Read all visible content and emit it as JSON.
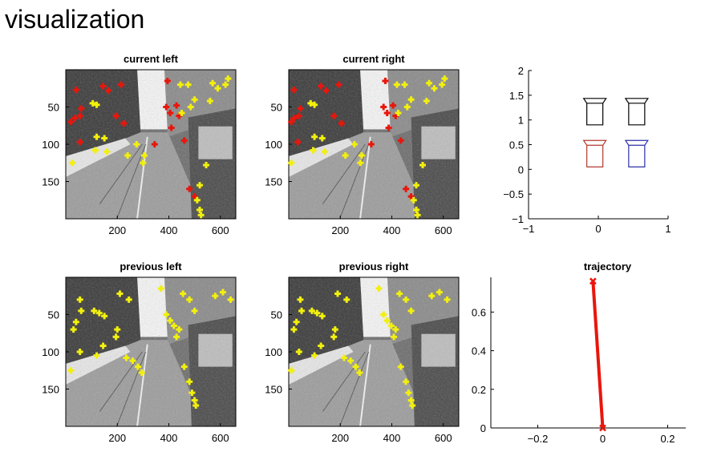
{
  "page": {
    "title": "visualization"
  },
  "colors": {
    "feature_current": "#e8160c",
    "feature_matched": "#f2f00c",
    "camera_left": "#b03a2e",
    "camera_right": "#2e2ea8",
    "camera_previous": "#000000",
    "trajectory": "#e8160c"
  },
  "chart_data": [
    {
      "id": "current-left",
      "type": "image",
      "title": "current left",
      "xticks": [
        "200",
        "400",
        "600"
      ],
      "yticks": [
        "50",
        "100",
        "150"
      ],
      "points": [
        {
          "x": 40,
          "y": 27,
          "c": "red"
        },
        {
          "x": 60,
          "y": 52,
          "c": "red"
        },
        {
          "x": 55,
          "y": 62,
          "c": "red"
        },
        {
          "x": 35,
          "y": 65,
          "c": "red"
        },
        {
          "x": 55,
          "y": 97,
          "c": "red"
        },
        {
          "x": 20,
          "y": 70,
          "c": "red"
        },
        {
          "x": 145,
          "y": 22,
          "c": "red"
        },
        {
          "x": 165,
          "y": 28,
          "c": "red"
        },
        {
          "x": 215,
          "y": 20,
          "c": "red"
        },
        {
          "x": 195,
          "y": 62,
          "c": "red"
        },
        {
          "x": 225,
          "y": 72,
          "c": "red"
        },
        {
          "x": 345,
          "y": 100,
          "c": "red"
        },
        {
          "x": 395,
          "y": 15,
          "c": "red"
        },
        {
          "x": 390,
          "y": 50,
          "c": "red"
        },
        {
          "x": 405,
          "y": 58,
          "c": "red"
        },
        {
          "x": 430,
          "y": 48,
          "c": "red"
        },
        {
          "x": 440,
          "y": 62,
          "c": "red"
        },
        {
          "x": 410,
          "y": 78,
          "c": "red"
        },
        {
          "x": 460,
          "y": 95,
          "c": "red"
        },
        {
          "x": 480,
          "y": 160,
          "c": "red"
        },
        {
          "x": 500,
          "y": 170,
          "c": "red"
        },
        {
          "x": 105,
          "y": 45,
          "c": "yellow"
        },
        {
          "x": 120,
          "y": 47,
          "c": "yellow"
        },
        {
          "x": 120,
          "y": 90,
          "c": "yellow"
        },
        {
          "x": 150,
          "y": 92,
          "c": "yellow"
        },
        {
          "x": 115,
          "y": 108,
          "c": "yellow"
        },
        {
          "x": 160,
          "y": 110,
          "c": "yellow"
        },
        {
          "x": 25,
          "y": 125,
          "c": "yellow"
        },
        {
          "x": 240,
          "y": 115,
          "c": "yellow"
        },
        {
          "x": 275,
          "y": 100,
          "c": "yellow"
        },
        {
          "x": 300,
          "y": 125,
          "c": "yellow"
        },
        {
          "x": 305,
          "y": 115,
          "c": "yellow"
        },
        {
          "x": 445,
          "y": 20,
          "c": "yellow"
        },
        {
          "x": 475,
          "y": 20,
          "c": "yellow"
        },
        {
          "x": 485,
          "y": 50,
          "c": "yellow"
        },
        {
          "x": 500,
          "y": 40,
          "c": "yellow"
        },
        {
          "x": 450,
          "y": 58,
          "c": "yellow"
        },
        {
          "x": 570,
          "y": 18,
          "c": "yellow"
        },
        {
          "x": 590,
          "y": 25,
          "c": "yellow"
        },
        {
          "x": 620,
          "y": 20,
          "c": "yellow"
        },
        {
          "x": 630,
          "y": 12,
          "c": "yellow"
        },
        {
          "x": 560,
          "y": 42,
          "c": "yellow"
        },
        {
          "x": 545,
          "y": 128,
          "c": "yellow"
        },
        {
          "x": 520,
          "y": 155,
          "c": "yellow"
        },
        {
          "x": 510,
          "y": 175,
          "c": "yellow"
        },
        {
          "x": 520,
          "y": 188,
          "c": "yellow"
        },
        {
          "x": 525,
          "y": 195,
          "c": "yellow"
        }
      ]
    },
    {
      "id": "current-right",
      "type": "image",
      "title": "current right",
      "xticks": [
        "200",
        "400",
        "600"
      ],
      "yticks": [
        "50",
        "100",
        "150"
      ],
      "points": [
        {
          "x": 20,
          "y": 27,
          "c": "red"
        },
        {
          "x": 45,
          "y": 52,
          "c": "red"
        },
        {
          "x": 40,
          "y": 62,
          "c": "red"
        },
        {
          "x": 20,
          "y": 65,
          "c": "red"
        },
        {
          "x": 35,
          "y": 97,
          "c": "red"
        },
        {
          "x": 10,
          "y": 70,
          "c": "red"
        },
        {
          "x": 125,
          "y": 22,
          "c": "red"
        },
        {
          "x": 145,
          "y": 28,
          "c": "red"
        },
        {
          "x": 195,
          "y": 20,
          "c": "red"
        },
        {
          "x": 175,
          "y": 62,
          "c": "red"
        },
        {
          "x": 205,
          "y": 72,
          "c": "red"
        },
        {
          "x": 320,
          "y": 100,
          "c": "red"
        },
        {
          "x": 375,
          "y": 15,
          "c": "red"
        },
        {
          "x": 368,
          "y": 50,
          "c": "red"
        },
        {
          "x": 382,
          "y": 58,
          "c": "red"
        },
        {
          "x": 405,
          "y": 48,
          "c": "red"
        },
        {
          "x": 415,
          "y": 62,
          "c": "red"
        },
        {
          "x": 388,
          "y": 78,
          "c": "red"
        },
        {
          "x": 435,
          "y": 95,
          "c": "red"
        },
        {
          "x": 455,
          "y": 160,
          "c": "red"
        },
        {
          "x": 475,
          "y": 170,
          "c": "red"
        },
        {
          "x": 85,
          "y": 45,
          "c": "yellow"
        },
        {
          "x": 100,
          "y": 47,
          "c": "yellow"
        },
        {
          "x": 100,
          "y": 90,
          "c": "yellow"
        },
        {
          "x": 130,
          "y": 92,
          "c": "yellow"
        },
        {
          "x": 95,
          "y": 108,
          "c": "yellow"
        },
        {
          "x": 140,
          "y": 110,
          "c": "yellow"
        },
        {
          "x": 10,
          "y": 125,
          "c": "yellow"
        },
        {
          "x": 220,
          "y": 115,
          "c": "yellow"
        },
        {
          "x": 255,
          "y": 100,
          "c": "yellow"
        },
        {
          "x": 278,
          "y": 125,
          "c": "yellow"
        },
        {
          "x": 283,
          "y": 115,
          "c": "yellow"
        },
        {
          "x": 420,
          "y": 20,
          "c": "yellow"
        },
        {
          "x": 450,
          "y": 20,
          "c": "yellow"
        },
        {
          "x": 460,
          "y": 50,
          "c": "yellow"
        },
        {
          "x": 475,
          "y": 40,
          "c": "yellow"
        },
        {
          "x": 425,
          "y": 58,
          "c": "yellow"
        },
        {
          "x": 545,
          "y": 18,
          "c": "yellow"
        },
        {
          "x": 565,
          "y": 25,
          "c": "yellow"
        },
        {
          "x": 595,
          "y": 20,
          "c": "yellow"
        },
        {
          "x": 605,
          "y": 12,
          "c": "yellow"
        },
        {
          "x": 535,
          "y": 42,
          "c": "yellow"
        },
        {
          "x": 520,
          "y": 128,
          "c": "yellow"
        },
        {
          "x": 495,
          "y": 155,
          "c": "yellow"
        },
        {
          "x": 485,
          "y": 175,
          "c": "yellow"
        },
        {
          "x": 495,
          "y": 188,
          "c": "yellow"
        },
        {
          "x": 500,
          "y": 195,
          "c": "yellow"
        }
      ]
    },
    {
      "id": "camera-poses",
      "type": "scatter",
      "title": "",
      "xlim": [
        -1,
        1
      ],
      "ylim": [
        -1,
        2
      ],
      "xticks": [
        "−1",
        "0",
        "1"
      ],
      "yticks": [
        "−1",
        "−0.5",
        "0",
        "0.5",
        "1",
        "1.5",
        "2"
      ],
      "cameras": [
        {
          "x": -0.05,
          "y": 0.9,
          "c": "previous"
        },
        {
          "x": 0.55,
          "y": 0.9,
          "c": "previous"
        },
        {
          "x": -0.05,
          "y": 0.05,
          "c": "left"
        },
        {
          "x": 0.55,
          "y": 0.05,
          "c": "right"
        }
      ]
    },
    {
      "id": "previous-left",
      "type": "image",
      "title": "previous left",
      "xticks": [
        "200",
        "400",
        "600"
      ],
      "yticks": [
        "50",
        "100",
        "150"
      ],
      "points": [
        {
          "x": 55,
          "y": 30,
          "c": "yellow"
        },
        {
          "x": 60,
          "y": 45,
          "c": "yellow"
        },
        {
          "x": 40,
          "y": 60,
          "c": "yellow"
        },
        {
          "x": 30,
          "y": 70,
          "c": "yellow"
        },
        {
          "x": 110,
          "y": 45,
          "c": "yellow"
        },
        {
          "x": 130,
          "y": 48,
          "c": "yellow"
        },
        {
          "x": 150,
          "y": 52,
          "c": "yellow"
        },
        {
          "x": 145,
          "y": 92,
          "c": "yellow"
        },
        {
          "x": 120,
          "y": 105,
          "c": "yellow"
        },
        {
          "x": 55,
          "y": 100,
          "c": "yellow"
        },
        {
          "x": 20,
          "y": 125,
          "c": "yellow"
        },
        {
          "x": 200,
          "y": 70,
          "c": "yellow"
        },
        {
          "x": 195,
          "y": 80,
          "c": "yellow"
        },
        {
          "x": 235,
          "y": 108,
          "c": "yellow"
        },
        {
          "x": 260,
          "y": 112,
          "c": "yellow"
        },
        {
          "x": 280,
          "y": 120,
          "c": "yellow"
        },
        {
          "x": 295,
          "y": 128,
          "c": "yellow"
        },
        {
          "x": 210,
          "y": 22,
          "c": "yellow"
        },
        {
          "x": 245,
          "y": 30,
          "c": "yellow"
        },
        {
          "x": 370,
          "y": 15,
          "c": "yellow"
        },
        {
          "x": 390,
          "y": 50,
          "c": "yellow"
        },
        {
          "x": 405,
          "y": 58,
          "c": "yellow"
        },
        {
          "x": 420,
          "y": 65,
          "c": "yellow"
        },
        {
          "x": 440,
          "y": 70,
          "c": "yellow"
        },
        {
          "x": 430,
          "y": 80,
          "c": "yellow"
        },
        {
          "x": 455,
          "y": 22,
          "c": "yellow"
        },
        {
          "x": 480,
          "y": 30,
          "c": "yellow"
        },
        {
          "x": 500,
          "y": 45,
          "c": "yellow"
        },
        {
          "x": 580,
          "y": 25,
          "c": "yellow"
        },
        {
          "x": 610,
          "y": 20,
          "c": "yellow"
        },
        {
          "x": 640,
          "y": 30,
          "c": "yellow"
        },
        {
          "x": 460,
          "y": 120,
          "c": "yellow"
        },
        {
          "x": 480,
          "y": 140,
          "c": "yellow"
        },
        {
          "x": 490,
          "y": 155,
          "c": "yellow"
        },
        {
          "x": 500,
          "y": 165,
          "c": "yellow"
        },
        {
          "x": 505,
          "y": 172,
          "c": "yellow"
        }
      ]
    },
    {
      "id": "previous-right",
      "type": "image",
      "title": "previous right",
      "xticks": [
        "200",
        "400",
        "600"
      ],
      "yticks": [
        "50",
        "100",
        "150"
      ],
      "points": [
        {
          "x": 45,
          "y": 30,
          "c": "yellow"
        },
        {
          "x": 50,
          "y": 45,
          "c": "yellow"
        },
        {
          "x": 30,
          "y": 60,
          "c": "yellow"
        },
        {
          "x": 20,
          "y": 70,
          "c": "yellow"
        },
        {
          "x": 90,
          "y": 45,
          "c": "yellow"
        },
        {
          "x": 110,
          "y": 48,
          "c": "yellow"
        },
        {
          "x": 130,
          "y": 52,
          "c": "yellow"
        },
        {
          "x": 125,
          "y": 92,
          "c": "yellow"
        },
        {
          "x": 100,
          "y": 105,
          "c": "yellow"
        },
        {
          "x": 40,
          "y": 100,
          "c": "yellow"
        },
        {
          "x": 10,
          "y": 125,
          "c": "yellow"
        },
        {
          "x": 180,
          "y": 70,
          "c": "yellow"
        },
        {
          "x": 175,
          "y": 80,
          "c": "yellow"
        },
        {
          "x": 215,
          "y": 108,
          "c": "yellow"
        },
        {
          "x": 240,
          "y": 112,
          "c": "yellow"
        },
        {
          "x": 260,
          "y": 120,
          "c": "yellow"
        },
        {
          "x": 275,
          "y": 128,
          "c": "yellow"
        },
        {
          "x": 190,
          "y": 22,
          "c": "yellow"
        },
        {
          "x": 225,
          "y": 30,
          "c": "yellow"
        },
        {
          "x": 350,
          "y": 15,
          "c": "yellow"
        },
        {
          "x": 368,
          "y": 50,
          "c": "yellow"
        },
        {
          "x": 382,
          "y": 58,
          "c": "yellow"
        },
        {
          "x": 398,
          "y": 65,
          "c": "yellow"
        },
        {
          "x": 415,
          "y": 70,
          "c": "yellow"
        },
        {
          "x": 408,
          "y": 80,
          "c": "yellow"
        },
        {
          "x": 430,
          "y": 22,
          "c": "yellow"
        },
        {
          "x": 455,
          "y": 30,
          "c": "yellow"
        },
        {
          "x": 475,
          "y": 45,
          "c": "yellow"
        },
        {
          "x": 555,
          "y": 25,
          "c": "yellow"
        },
        {
          "x": 585,
          "y": 20,
          "c": "yellow"
        },
        {
          "x": 615,
          "y": 30,
          "c": "yellow"
        },
        {
          "x": 435,
          "y": 120,
          "c": "yellow"
        },
        {
          "x": 455,
          "y": 140,
          "c": "yellow"
        },
        {
          "x": 465,
          "y": 155,
          "c": "yellow"
        },
        {
          "x": 475,
          "y": 165,
          "c": "yellow"
        },
        {
          "x": 480,
          "y": 172,
          "c": "yellow"
        }
      ]
    },
    {
      "id": "trajectory",
      "type": "line",
      "title": "trajectory",
      "xlim": [
        -0.3,
        0.3
      ],
      "ylim": [
        0,
        0.78
      ],
      "xticks": [
        "−0.2",
        "0",
        "0.2"
      ],
      "yticks": [
        "0",
        "0.2",
        "0.4",
        "0.6"
      ],
      "x": [
        0.0,
        -0.03
      ],
      "y": [
        0.0,
        0.76
      ]
    }
  ]
}
